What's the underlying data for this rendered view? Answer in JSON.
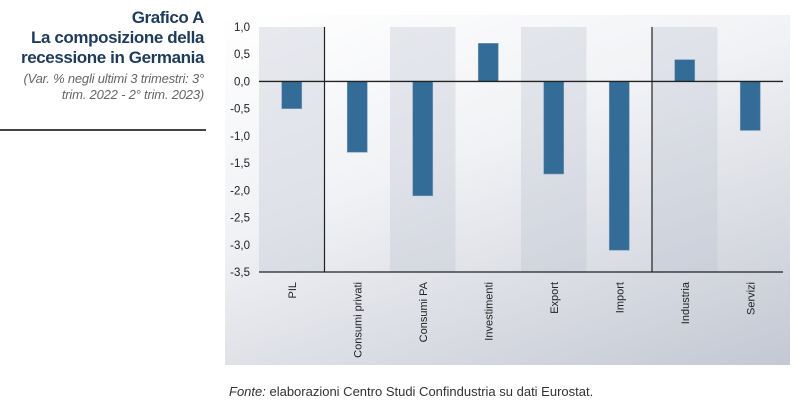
{
  "title": {
    "label": "Grafico A",
    "heading": "La composizione della recessione in Germania",
    "subtitle": "(Var. % negli ultimi 3 trimestri: 3° trim. 2022 - 2° trim. 2023)"
  },
  "source": {
    "prefix": "Fonte:",
    "text": " elaborazioni Centro Studi Confindustria su dati Eurostat."
  },
  "chart_data": {
    "type": "bar",
    "categories": [
      "PIL",
      "Consumi privati",
      "Consumi PA",
      "Investimenti",
      "Export",
      "Import",
      "Industria",
      "Servizi"
    ],
    "values": [
      -0.5,
      -1.3,
      -2.1,
      0.7,
      -1.7,
      -3.1,
      0.4,
      -0.9
    ],
    "ylim": [
      -3.5,
      1.0
    ],
    "yticks": [
      "1,0",
      "0,5",
      "0,0",
      "-0,5",
      "-1,0",
      "-1,5",
      "-2,0",
      "-2,5",
      "-3,0",
      "-3,5"
    ],
    "bar_color": "#336c97",
    "xlabel": "",
    "ylabel": "",
    "grid": false
  }
}
